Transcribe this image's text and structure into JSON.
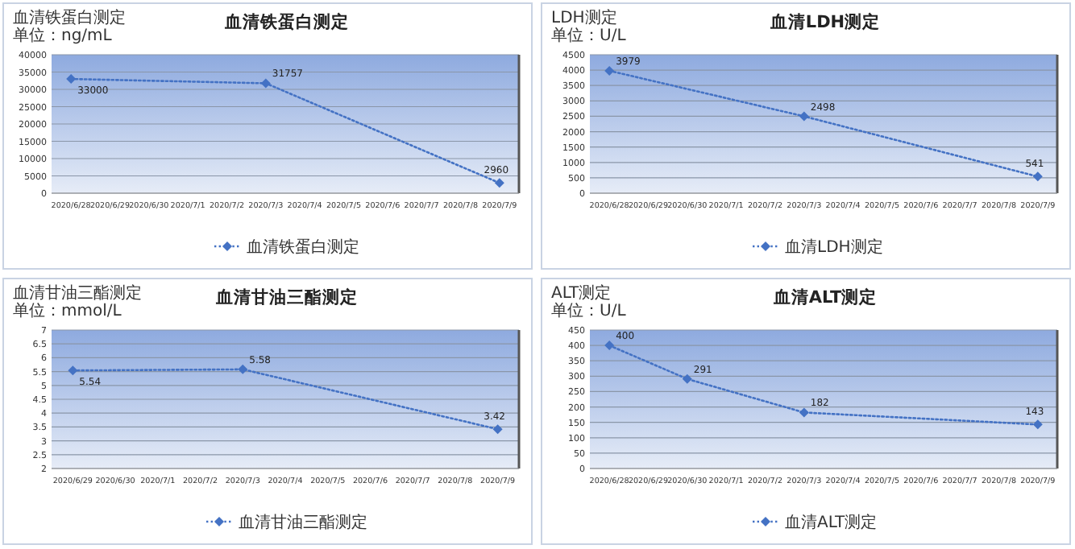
{
  "chart_data": [
    {
      "type": "line",
      "title": "血清铁蛋白测定",
      "ylabel": "血清铁蛋白测定",
      "annotations": [
        "单位：ng/mL"
      ],
      "categories": [
        "2020/6/28",
        "2020/6/29",
        "2020/6/30",
        "2020/7/1",
        "2020/7/2",
        "2020/7/3",
        "2020/7/4",
        "2020/7/5",
        "2020/7/6",
        "2020/7/7",
        "2020/7/8",
        "2020/7/9"
      ],
      "series": [
        {
          "name": "血清铁蛋白测定",
          "color": "#4472c4",
          "values": [
            33000,
            null,
            null,
            null,
            null,
            31757,
            null,
            null,
            null,
            null,
            null,
            2960
          ]
        }
      ],
      "ylim": [
        0,
        40000
      ],
      "yticks": [
        0,
        5000,
        10000,
        15000,
        20000,
        25000,
        30000,
        35000,
        40000
      ],
      "grid": "y",
      "legend": "bottom",
      "marker": "diamond",
      "line_style": "dotted",
      "data_labels": true
    },
    {
      "type": "line",
      "title": "血清LDH测定",
      "ylabel": "LDH测定",
      "annotations": [
        "单位：U/L"
      ],
      "categories": [
        "2020/6/28",
        "2020/6/29",
        "2020/6/30",
        "2020/7/1",
        "2020/7/2",
        "2020/7/3",
        "2020/7/4",
        "2020/7/5",
        "2020/7/6",
        "2020/7/7",
        "2020/7/8",
        "2020/7/9"
      ],
      "series": [
        {
          "name": "血清LDH测定",
          "color": "#4472c4",
          "values": [
            3979,
            null,
            null,
            null,
            null,
            2498,
            null,
            null,
            null,
            null,
            null,
            541
          ]
        }
      ],
      "ylim": [
        0,
        4500
      ],
      "yticks": [
        0,
        500,
        1000,
        1500,
        2000,
        2500,
        3000,
        3500,
        4000,
        4500
      ],
      "grid": "y",
      "legend": "bottom",
      "marker": "diamond",
      "line_style": "dotted",
      "data_labels": true
    },
    {
      "type": "line",
      "title": "血清甘油三酯测定",
      "ylabel": "血清甘油三酯测定",
      "annotations": [
        "单位：mmol/L"
      ],
      "categories": [
        "2020/6/29",
        "2020/6/30",
        "2020/7/1",
        "2020/7/2",
        "2020/7/3",
        "2020/7/4",
        "2020/7/5",
        "2020/7/6",
        "2020/7/7",
        "2020/7/8",
        "2020/7/9"
      ],
      "series": [
        {
          "name": "血清甘油三酯测定",
          "color": "#4472c4",
          "values": [
            5.54,
            null,
            null,
            null,
            5.58,
            null,
            null,
            null,
            null,
            null,
            3.42
          ]
        }
      ],
      "ylim": [
        2,
        7
      ],
      "yticks": [
        2,
        2.5,
        3,
        3.5,
        4,
        4.5,
        5,
        5.5,
        6,
        6.5,
        7
      ],
      "grid": "y",
      "legend": "bottom",
      "marker": "diamond",
      "line_style": "dotted",
      "data_labels": true
    },
    {
      "type": "line",
      "title": "血清ALT测定",
      "ylabel": "ALT测定",
      "annotations": [
        "单位：U/L"
      ],
      "categories": [
        "2020/6/28",
        "2020/6/29",
        "2020/6/30",
        "2020/7/1",
        "2020/7/2",
        "2020/7/3",
        "2020/7/4",
        "2020/7/5",
        "2020/7/6",
        "2020/7/7",
        "2020/7/8",
        "2020/7/9"
      ],
      "series": [
        {
          "name": "血清ALT测定",
          "color": "#4472c4",
          "values": [
            400,
            null,
            291,
            null,
            null,
            182,
            null,
            null,
            null,
            null,
            null,
            143
          ]
        }
      ],
      "ylim": [
        0,
        450
      ],
      "yticks": [
        0,
        50,
        100,
        150,
        200,
        250,
        300,
        350,
        400,
        450
      ],
      "grid": "y",
      "legend": "bottom",
      "marker": "diamond",
      "line_style": "dotted",
      "data_labels": true
    }
  ]
}
